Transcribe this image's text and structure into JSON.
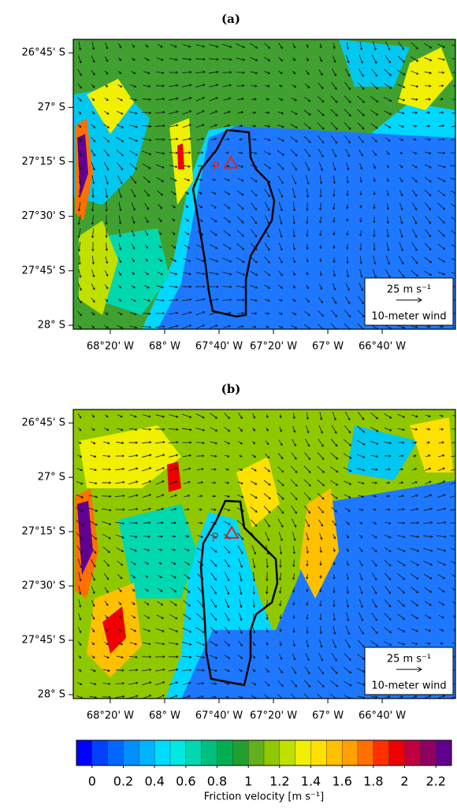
{
  "chart_data": [
    {
      "type": "map",
      "title": "(a)",
      "xlim": [
        -68.56,
        -66.218
      ],
      "ylim": [
        -26.688,
        -28.018
      ],
      "xticks": [
        {
          "value": -68.3333,
          "label": "68°20' W"
        },
        {
          "value": -68,
          "label": "68° W"
        },
        {
          "value": -67.6667,
          "label": "67°40' W"
        },
        {
          "value": -67.3333,
          "label": "67°20' W"
        },
        {
          "value": -67,
          "label": "67° W"
        },
        {
          "value": -66.6667,
          "label": "66°40' W"
        }
      ],
      "yticks": [
        {
          "value": -26.75,
          "label": "26°45' S"
        },
        {
          "value": -27,
          "label": "27° S"
        },
        {
          "value": -27.25,
          "label": "27°15' S"
        },
        {
          "value": -27.5,
          "label": "27°30' S"
        },
        {
          "value": -27.75,
          "label": "27°45' S"
        },
        {
          "value": -28,
          "label": "28° S"
        }
      ],
      "point_label": "P",
      "legend": {
        "scale": "25 m s⁻¹",
        "label": "10-meter wind"
      }
    },
    {
      "type": "map",
      "title": "(b)",
      "xlim": [
        -68.56,
        -66.218
      ],
      "ylim": [
        -26.688,
        -28.018
      ],
      "xticks": [
        {
          "value": -68.3333,
          "label": "68°20' W"
        },
        {
          "value": -68,
          "label": "68° W"
        },
        {
          "value": -67.6667,
          "label": "67°40' W"
        },
        {
          "value": -67.3333,
          "label": "67°20' W"
        },
        {
          "value": -67,
          "label": "67° W"
        },
        {
          "value": -66.6667,
          "label": "66°40' W"
        }
      ],
      "yticks": [
        {
          "value": -26.75,
          "label": "26°45' S"
        },
        {
          "value": -27,
          "label": "27° S"
        },
        {
          "value": -27.25,
          "label": "27°15' S"
        },
        {
          "value": -27.5,
          "label": "27°30' S"
        },
        {
          "value": -27.75,
          "label": "27°45' S"
        },
        {
          "value": -28,
          "label": "28° S"
        }
      ],
      "point_label": "P",
      "legend": {
        "scale": "25 m s⁻¹",
        "label": "10-meter wind"
      }
    }
  ],
  "colorbar": {
    "label": "Friction velocity [m s⁻¹]",
    "lim": [
      -0.1,
      2.3
    ],
    "ticks": [
      0,
      0.2,
      0.4,
      0.6,
      0.8,
      1,
      1.2,
      1.4,
      1.6,
      1.8,
      2,
      2.2
    ],
    "colors": [
      "#0000ff",
      "#0040ff",
      "#0068ff",
      "#0090ff",
      "#00b4ff",
      "#00dcff",
      "#00e8e0",
      "#00d8b0",
      "#00c080",
      "#00b050",
      "#20a030",
      "#60b020",
      "#90c800",
      "#c0e000",
      "#f0f000",
      "#ffe000",
      "#ffc000",
      "#ffa000",
      "#ff7000",
      "#ff3000",
      "#ee0000",
      "#c00040",
      "#900060",
      "#600090"
    ]
  }
}
